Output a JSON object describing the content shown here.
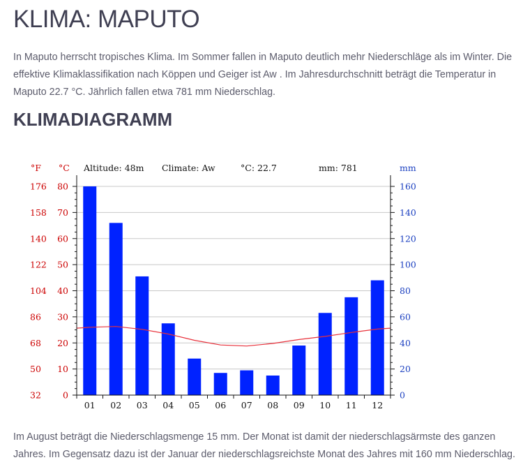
{
  "page": {
    "title": "KLIMA: MAPUTO",
    "intro": " In Maputo herrscht tropisches Klima. Im Sommer fallen in Maputo deutlich mehr Niederschläge als im Winter. Die effektive Klimaklassifikation nach Köppen und Geiger ist Aw . Im Jahresdurchschnitt beträgt die Temperatur in Maputo 22.7 °C. Jährlich fallen etwa 781 mm Niederschlag.",
    "section_title": "KLIMADIAGRAMM",
    "outro": "Im August beträgt die Niederschlagsmenge 15 mm. Der Monat ist damit der niederschlagsärmste des ganzen Jahres. Im Gegensatz dazu ist der Januar der niederschlagsreichste Monat des Jahres mit 160 mm Niederschlag."
  },
  "chart_data": {
    "type": "bar",
    "header": {
      "altitude": "Altitude: 48m",
      "climate": "Climate: Aw",
      "temp": "°C: 22.7",
      "precip": "mm: 781"
    },
    "unit_labels": {
      "fahrenheit": "°F",
      "celsius": "°C",
      "mm": "mm"
    },
    "categories": [
      "01",
      "02",
      "03",
      "04",
      "05",
      "06",
      "07",
      "08",
      "09",
      "10",
      "11",
      "12"
    ],
    "precipitation_mm": [
      160,
      132,
      91,
      55,
      28,
      17,
      19,
      15,
      38,
      63,
      75,
      88
    ],
    "temperature_c": [
      26.0,
      26.3,
      25.2,
      23.4,
      21.0,
      19.2,
      18.8,
      19.8,
      21.3,
      22.5,
      24.0,
      25.3
    ],
    "axes": {
      "celsius_ticks": [
        "0",
        "10",
        "20",
        "30",
        "40",
        "50",
        "60",
        "70",
        "80"
      ],
      "fahrenheit_ticks": [
        "32",
        "50",
        "68",
        "86",
        "104",
        "122",
        "140",
        "158",
        "176"
      ],
      "mm_ticks": [
        "0",
        "20",
        "40",
        "60",
        "80",
        "100",
        "120",
        "140",
        "160"
      ],
      "celsius_range": [
        0,
        80
      ],
      "mm_range": [
        0,
        160
      ]
    },
    "grid": true,
    "colors": {
      "bars": "#0022ff",
      "temperature_line": "#e8303a",
      "celsius": "#cc0000",
      "mm": "#1a3fc0"
    }
  }
}
